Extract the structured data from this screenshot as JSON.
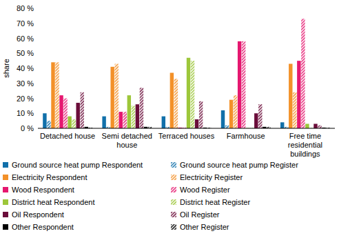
{
  "chart_data": {
    "type": "bar",
    "y_label": "share",
    "categories": [
      "Detached house",
      "Semi detached house",
      "Terraced houses",
      "Farmhouse",
      "Free time residential buildings"
    ],
    "ylim": [
      0,
      80
    ],
    "yticks": [
      {
        "value": 0,
        "label": "0 %"
      },
      {
        "value": 10,
        "label": "10 %"
      },
      {
        "value": 20,
        "label": "20 %"
      },
      {
        "value": 30,
        "label": "30 %"
      },
      {
        "value": 40,
        "label": "40 %"
      },
      {
        "value": 50,
        "label": "50 %"
      },
      {
        "value": 60,
        "label": "60 %"
      },
      {
        "value": 70,
        "label": "70 %"
      },
      {
        "value": 80,
        "label": "80 %"
      }
    ],
    "grid": false,
    "legend": "bottom",
    "series": [
      {
        "name": "Ground source heat pump Respondent",
        "color": "#1170aa",
        "line_style": "solid",
        "values": [
          10,
          8,
          8,
          12,
          4
        ]
      },
      {
        "name": "Ground source heat pump Register",
        "color": "#1170aa",
        "line_style": "hatched",
        "values": [
          5,
          1,
          1,
          2,
          1
        ]
      },
      {
        "name": "Electricity Respondent",
        "color": "#f39129",
        "line_style": "solid",
        "values": [
          44,
          41,
          37,
          19,
          43
        ]
      },
      {
        "name": "Electricity Register",
        "color": "#f39129",
        "line_style": "hatched",
        "values": [
          44,
          43,
          33,
          22,
          24
        ]
      },
      {
        "name": "Wood Respondent",
        "color": "#e5176f",
        "line_style": "solid",
        "values": [
          22,
          11,
          0.5,
          58,
          45
        ]
      },
      {
        "name": "Wood Register",
        "color": "#e5176f",
        "line_style": "hatched",
        "values": [
          20,
          11,
          0.5,
          58,
          73
        ]
      },
      {
        "name": "District heat Respondent",
        "color": "#9dc73a",
        "line_style": "solid",
        "values": [
          8,
          22,
          47,
          0.2,
          3
        ]
      },
      {
        "name": "District heat Register",
        "color": "#9dc73a",
        "line_style": "hatched",
        "values": [
          6,
          15,
          45,
          0.2,
          0.2
        ]
      },
      {
        "name": "Oil Respondent",
        "color": "#6b0d3a",
        "line_style": "solid",
        "values": [
          17,
          16,
          6,
          10,
          3
        ]
      },
      {
        "name": "Oil Register",
        "color": "#6b0d3a",
        "line_style": "hatched",
        "values": [
          24,
          27,
          18,
          16,
          2
        ]
      },
      {
        "name": "Other Respondent",
        "color": "#000000",
        "line_style": "solid",
        "values": [
          1,
          1,
          0.5,
          1,
          0.5
        ]
      },
      {
        "name": "Other Register",
        "color": "#000000",
        "line_style": "hatched",
        "values": [
          0.5,
          1,
          0.5,
          1,
          0.5
        ]
      }
    ]
  }
}
